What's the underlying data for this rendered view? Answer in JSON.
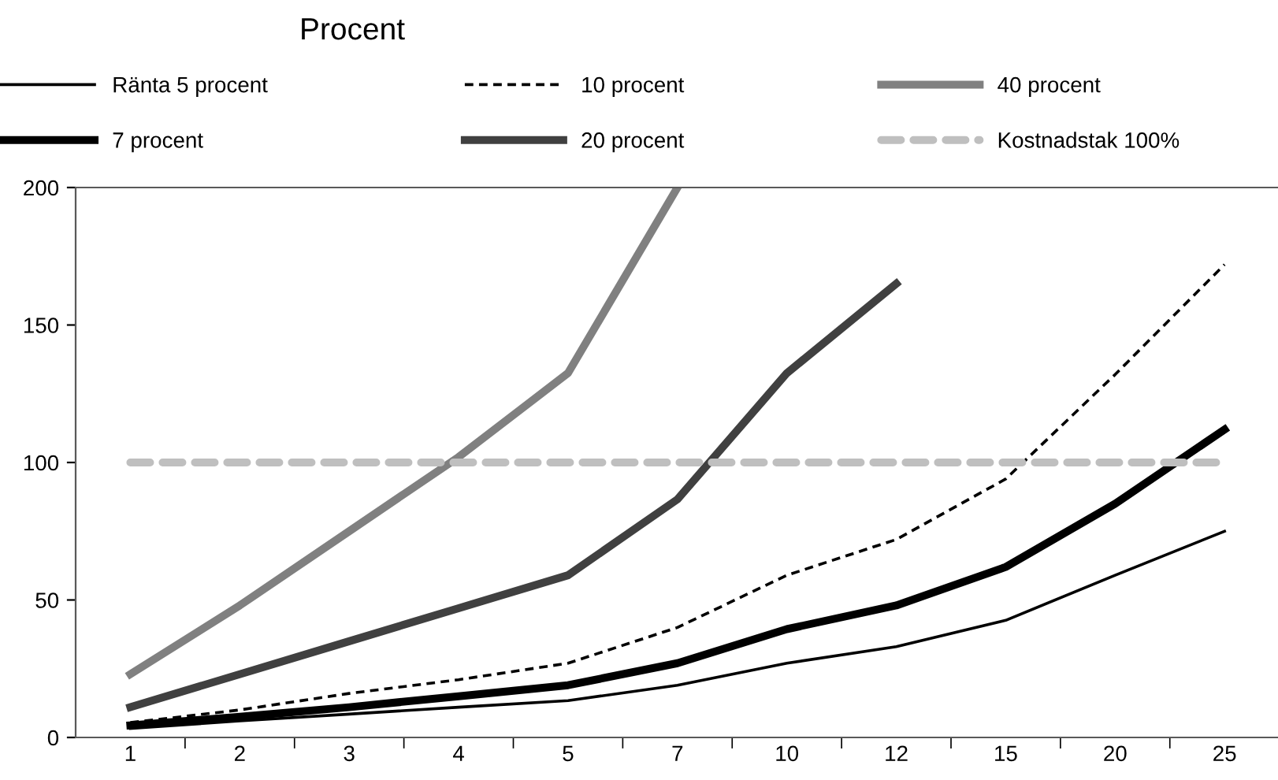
{
  "chart_data": {
    "type": "line",
    "title": "Procent",
    "categories": [
      "1",
      "2",
      "3",
      "4",
      "5",
      "7",
      "10",
      "12",
      "15",
      "20",
      "25"
    ],
    "series": [
      {
        "name": "Ränta 5 procent",
        "color": "#000000",
        "line_style": "solid",
        "values": [
          3.3,
          6,
          8.5,
          11,
          13.4,
          19,
          27,
          33,
          42.6,
          59,
          75
        ]
      },
      {
        "name": "7 procent",
        "color": "#000000",
        "line_style": "solid",
        "values": [
          4.4,
          7.5,
          11,
          15,
          19,
          27,
          39.4,
          48,
          62,
          85,
          112
        ]
      },
      {
        "name": "10 procent",
        "color": "#000000",
        "line_style": "dashed",
        "values": [
          5.4,
          10,
          16,
          21,
          27,
          40,
          59,
          72,
          94,
          132,
          172
        ]
      },
      {
        "name": "20 procent",
        "color": "#404040",
        "line_style": "solid",
        "values": [
          11,
          23,
          35,
          47,
          59,
          86.6,
          132.5,
          165,
          null,
          null,
          null
        ]
      },
      {
        "name": "40 procent",
        "color": "#808080",
        "line_style": "solid",
        "values": [
          23,
          48,
          75,
          102,
          132.5,
          200,
          null,
          null,
          null,
          null,
          null
        ]
      },
      {
        "name": "Kostnadstak 100%",
        "color": "#bfbfbf",
        "line_style": "dashed",
        "values": [
          100,
          100,
          100,
          100,
          100,
          100,
          100,
          100,
          100,
          100,
          100
        ]
      }
    ],
    "ylim": [
      0,
      200
    ],
    "yticks": [
      0,
      50,
      100,
      150,
      200
    ],
    "grid": false,
    "legend": "top",
    "marker": "none"
  }
}
